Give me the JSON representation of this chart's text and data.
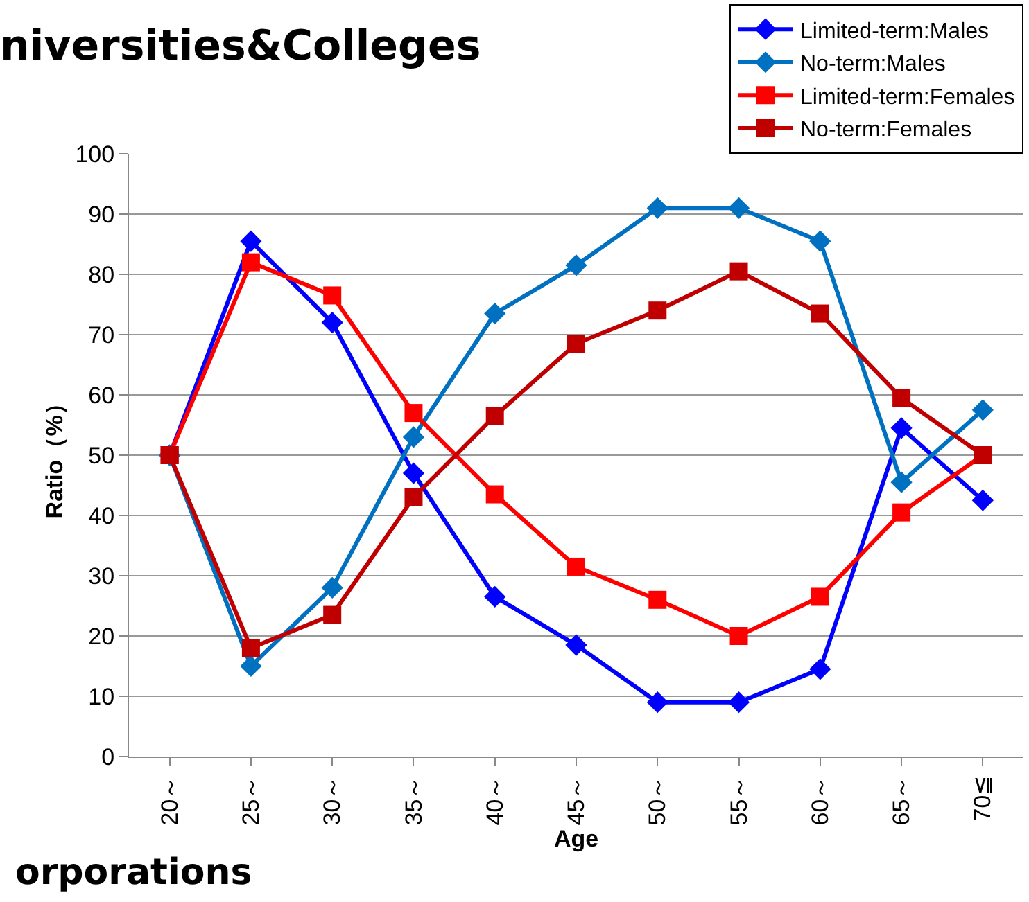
{
  "chart_data": {
    "type": "line",
    "title": "niversities&Colleges",
    "xlabel": "Age",
    "ylabel": "Ratio（%）",
    "categories": [
      "20～",
      "25～",
      "30～",
      "35～",
      "40～",
      "45～",
      "50～",
      "55～",
      "60～",
      "65～",
      "70≦"
    ],
    "series": [
      {
        "name": "Limited-term:Males",
        "color": "#0000ff",
        "marker": "diamond",
        "values": [
          50,
          85.5,
          72,
          47,
          26.5,
          18.5,
          9,
          9,
          14.5,
          54.5,
          42.5
        ]
      },
      {
        "name": "No-term:Males",
        "color": "#0070c0",
        "marker": "diamond",
        "values": [
          50,
          15,
          28,
          53,
          73.5,
          81.5,
          91,
          91,
          85.5,
          45.5,
          57.5
        ]
      },
      {
        "name": "Limited-term:Females",
        "color": "#ff0000",
        "marker": "square",
        "values": [
          50,
          82,
          76.5,
          57,
          43.5,
          31.5,
          26,
          20,
          26.5,
          40.5,
          50
        ]
      },
      {
        "name": "No-term:Females",
        "color": "#c00000",
        "marker": "square",
        "values": [
          50,
          18,
          23.5,
          43,
          56.5,
          68.5,
          74,
          80.5,
          73.5,
          59.5,
          50
        ]
      }
    ],
    "ylim": [
      0,
      100
    ],
    "yticks": [
      0,
      10,
      20,
      30,
      40,
      50,
      60,
      70,
      80,
      90,
      100
    ],
    "grid": "y",
    "legend": "top right",
    "annotations": [
      "orporations"
    ]
  }
}
